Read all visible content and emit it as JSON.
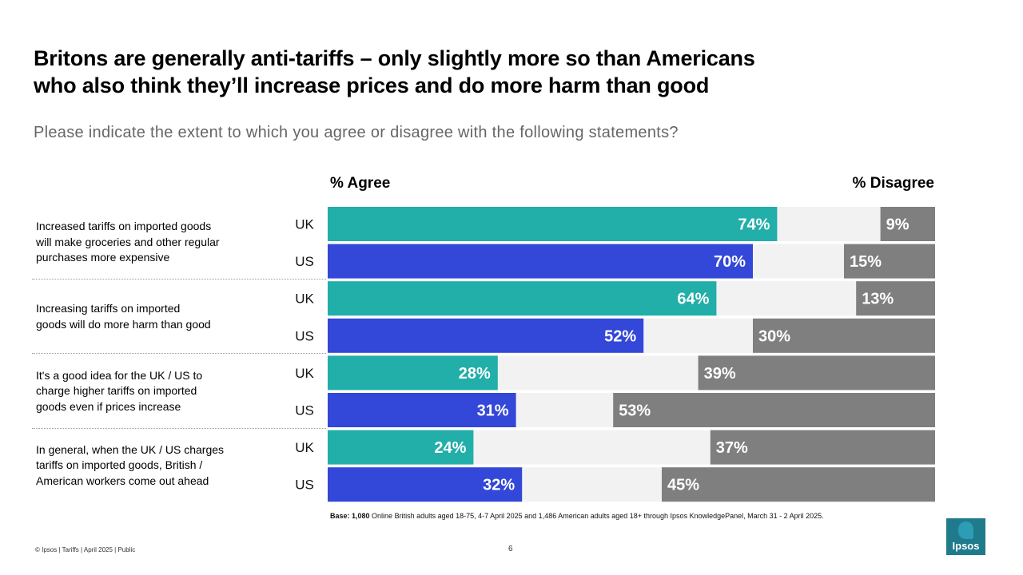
{
  "title_lines": [
    "Britons are generally anti-tariffs – only slightly more so than Americans",
    "who also think they’ll increase prices and do more harm than good"
  ],
  "subtitle": "Please indicate the extent to which you agree or disagree with the following statements?",
  "colors": {
    "uk": "#22aea9",
    "us": "#3347d8",
    "disagree": "#7f7f7f",
    "neutral": "#f2f2f2"
  },
  "chart_data": {
    "type": "bar",
    "orientation": "horizontal-diverging",
    "xlim": [
      0,
      100
    ],
    "agree_label": "% Agree",
    "disagree_label": "% Disagree",
    "questions": [
      {
        "label": "Increased tariffs on imported goods will make groceries and other regular purchases more expensive",
        "lines": [
          "Increased tariffs on imported goods",
          "will make groceries and other regular",
          "purchases more expensive"
        ],
        "rows": [
          {
            "country": "UK",
            "agree": 74,
            "disagree": 9,
            "agree_label": "74%",
            "disagree_label": "9%"
          },
          {
            "country": "US",
            "agree": 70,
            "disagree": 15,
            "agree_label": "70%",
            "disagree_label": "15%"
          }
        ]
      },
      {
        "label": "Increasing tariffs on imported goods will do more harm than good",
        "lines": [
          "Increasing tariffs on imported",
          "goods will do more harm than good"
        ],
        "rows": [
          {
            "country": "UK",
            "agree": 64,
            "disagree": 13,
            "agree_label": "64%",
            "disagree_label": "13%"
          },
          {
            "country": "US",
            "agree": 52,
            "disagree": 30,
            "agree_label": "52%",
            "disagree_label": "30%"
          }
        ]
      },
      {
        "label": "It's a good idea for the UK / US to charge higher tariffs on imported goods even if prices increase",
        "lines": [
          "It's a good idea for the UK / US to",
          "charge higher tariffs on imported",
          "goods even if prices increase"
        ],
        "rows": [
          {
            "country": "UK",
            "agree": 28,
            "disagree": 39,
            "agree_label": "28%",
            "disagree_label": "39%"
          },
          {
            "country": "US",
            "agree": 31,
            "disagree": 53,
            "agree_label": "31%",
            "disagree_label": "53%"
          }
        ]
      },
      {
        "label": "In general, when the UK / US charges tariffs on imported goods, British / American workers come out ahead",
        "lines": [
          "In general, when the UK / US charges",
          "tariffs on imported goods, British /",
          "American workers come out ahead"
        ],
        "rows": [
          {
            "country": "UK",
            "agree": 24,
            "disagree": 37,
            "agree_label": "24%",
            "disagree_label": "37%"
          },
          {
            "country": "US",
            "agree": 32,
            "disagree": 45,
            "agree_label": "32%",
            "disagree_label": "45%"
          }
        ]
      }
    ]
  },
  "base_note_bold": "Base: 1,080",
  "base_note_rest": " Online British adults aged 18-75, 4-7 April 2025 and 1,486 American adults aged 18+ through Ipsos KnowledgePanel, March 31 - 2 April 2025.",
  "footer": "© Ipsos | Tariffs | April 2025 | Public",
  "page_number": "6",
  "logo_text": "Ipsos"
}
